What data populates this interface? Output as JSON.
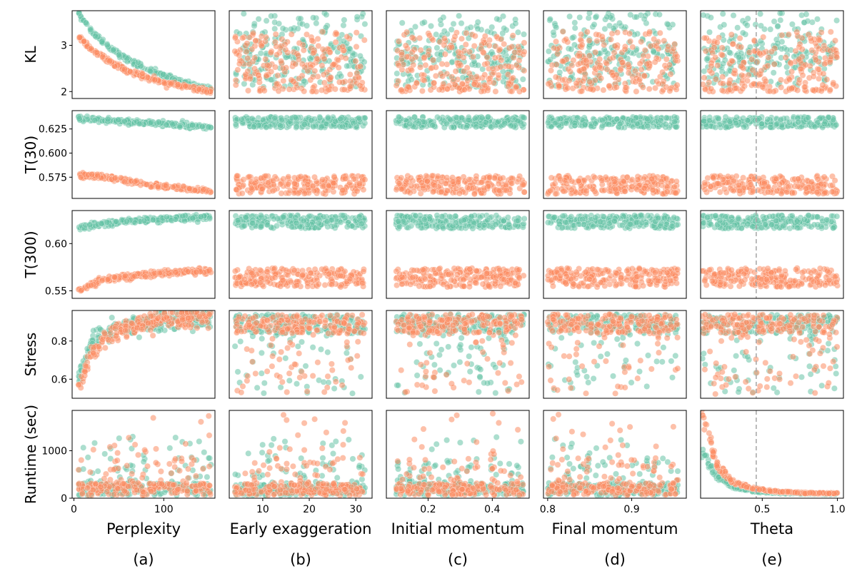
{
  "figure": {
    "columns": [
      {
        "id": "perplexity",
        "xlabel": "Perplexity",
        "tag": "(a)",
        "xlim": [
          -2,
          157
        ],
        "ticks": [
          0,
          100
        ],
        "tick_labels": [
          "0",
          "100"
        ]
      },
      {
        "id": "early_exaggeration",
        "xlabel": "Early exaggeration",
        "tag": "(b)",
        "xlim": [
          2.8,
          33.5
        ],
        "ticks": [
          10,
          20,
          30
        ],
        "tick_labels": [
          "10",
          "20",
          "30"
        ]
      },
      {
        "id": "initial_momentum",
        "xlabel": "Initial momentum",
        "tag": "(c)",
        "xlim": [
          0.07,
          0.515
        ],
        "ticks": [
          0.2,
          0.4
        ],
        "tick_labels": [
          "0.2",
          "0.4"
        ]
      },
      {
        "id": "final_momentum",
        "xlabel": "Final momentum",
        "tag": "(d)",
        "xlim": [
          0.795,
          0.965
        ],
        "ticks": [
          0.8,
          0.9
        ],
        "tick_labels": [
          "0.8",
          "0.9"
        ]
      },
      {
        "id": "theta",
        "xlabel": "Theta",
        "tag": "(e)",
        "xlim": [
          0.09,
          1.04
        ],
        "ticks": [
          0.5,
          1.0
        ],
        "tick_labels": [
          "0.5",
          "1.0"
        ],
        "vline": 0.46
      }
    ],
    "rows": [
      {
        "id": "kl",
        "ylabel": "KL",
        "ylim": [
          1.85,
          3.75
        ],
        "ticks": [
          2,
          3
        ],
        "tick_labels": [
          "2",
          "3"
        ]
      },
      {
        "id": "t30",
        "ylabel": "T(30)",
        "ylim": [
          0.553,
          0.644
        ],
        "ticks": [
          0.575,
          0.6,
          0.625
        ],
        "tick_labels": [
          "0.575",
          "0.600",
          "0.625"
        ]
      },
      {
        "id": "t300",
        "ylabel": "T(300)",
        "ylim": [
          0.542,
          0.635
        ],
        "ticks": [
          0.55,
          0.6
        ],
        "tick_labels": [
          "0.55",
          "0.60"
        ]
      },
      {
        "id": "stress",
        "ylabel": "Stress",
        "ylim": [
          0.5,
          0.96
        ],
        "ticks": [
          0.6,
          0.8
        ],
        "tick_labels": [
          "0.6",
          "0.8"
        ]
      },
      {
        "id": "runtime",
        "ylabel": "Runtime (sec)",
        "ylim": [
          0,
          1850
        ],
        "ticks": [
          0,
          1000
        ],
        "tick_labels": [
          "0",
          "1000"
        ]
      }
    ],
    "colors": {
      "series_a": "#66c2a5",
      "series_b": "#fc8d62",
      "vline": "#aaaaaa"
    }
  },
  "chart_data": {
    "type": "scatter",
    "description_of_layout": "5x5 grid of scatter panels; rows share y metric, columns share x hyperparameter",
    "series": [
      {
        "color": "#66c2a5",
        "points_per_panel": 400,
        "trends": {
          "kl_vs_perplexity": {
            "x": [
              5,
              20,
              40,
              60,
              80,
              100,
              120,
              150
            ],
            "y": [
              3.7,
              3.3,
              2.95,
              2.7,
              2.5,
              2.35,
              2.2,
              2.05
            ]
          },
          "t30_vs_perplexity": {
            "x": [
              5,
              50,
              100,
              150
            ],
            "y": [
              0.636,
              0.633,
              0.63,
              0.627
            ]
          },
          "t300_vs_perplexity": {
            "x": [
              5,
              50,
              100,
              150
            ],
            "y": [
              0.617,
              0.623,
              0.626,
              0.628
            ]
          },
          "stress_vs_perplexity": {
            "x": [
              5,
              15,
              30,
              60,
              100,
              150
            ],
            "y": [
              0.6,
              0.75,
              0.84,
              0.88,
              0.9,
              0.92
            ]
          },
          "runtime_vs_theta": {
            "x": [
              0.1,
              0.2,
              0.3,
              0.46,
              0.6,
              0.8,
              1.0
            ],
            "y": [
              950,
              450,
              240,
              140,
              110,
              95,
              90
            ]
          },
          "t30_level_other": 0.632,
          "t300_level_other": 0.623,
          "kl_range_other": [
            2.0,
            3.7
          ],
          "stress_range_other": [
            0.5,
            0.95
          ]
        }
      },
      {
        "color": "#fc8d62",
        "points_per_panel": 400,
        "trends": {
          "kl_vs_perplexity": {
            "x": [
              5,
              20,
              40,
              60,
              80,
              100,
              120,
              150
            ],
            "y": [
              3.2,
              2.9,
              2.65,
              2.45,
              2.32,
              2.2,
              2.12,
              2.0
            ]
          },
          "t30_vs_perplexity": {
            "x": [
              5,
              30,
              60,
              100,
              150
            ],
            "y": [
              0.577,
              0.576,
              0.571,
              0.565,
              0.561
            ]
          },
          "t300_vs_perplexity": {
            "x": [
              5,
              30,
              60,
              100,
              150
            ],
            "y": [
              0.55,
              0.561,
              0.565,
              0.569,
              0.571
            ]
          },
          "stress_vs_perplexity": {
            "x": [
              5,
              15,
              30,
              60,
              100,
              150
            ],
            "y": [
              0.55,
              0.68,
              0.8,
              0.88,
              0.91,
              0.93
            ]
          },
          "runtime_vs_theta": {
            "x": [
              0.1,
              0.2,
              0.3,
              0.46,
              0.6,
              0.8,
              1.0
            ],
            "y": [
              1800,
              700,
              350,
              190,
              140,
              110,
              100
            ]
          },
          "t30_level_other": 0.567,
          "t300_level_other": 0.564,
          "kl_range_other": [
            2.0,
            3.3
          ],
          "stress_range_other": [
            0.5,
            0.95
          ]
        }
      }
    ]
  }
}
